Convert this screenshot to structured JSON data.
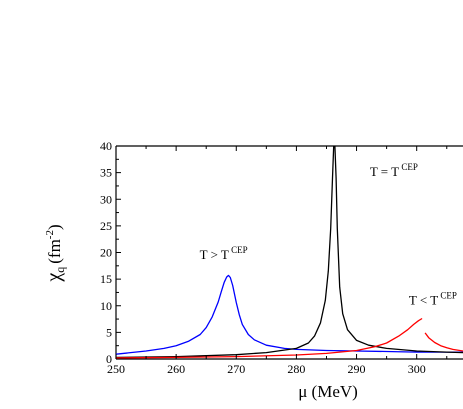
{
  "chart_data": {
    "type": "line",
    "title": "",
    "xlabel": "μ (MeV)",
    "ylabel_main": "χ",
    "ylabel_sub": "q",
    "ylabel_unit": "(fm",
    "ylabel_exp": "-2",
    "ylabel_close": ")",
    "xlim": [
      250,
      307.7
    ],
    "ylim": [
      0,
      40
    ],
    "xticks": [
      250,
      260,
      270,
      280,
      290,
      300
    ],
    "yticks": [
      0,
      5,
      10,
      15,
      20,
      25,
      30,
      35,
      40
    ],
    "grid": false,
    "series": [
      {
        "color": "#0000ff",
        "x": [
          250,
          255,
          258,
          260,
          262,
          264,
          265,
          266,
          267,
          267.5,
          268,
          268.4,
          268.7,
          269,
          269.4,
          270,
          270.5,
          271,
          272,
          273,
          275,
          278,
          280,
          285,
          290,
          295,
          300,
          305,
          307.7
        ],
        "y": [
          0.9,
          1.5,
          2.0,
          2.5,
          3.3,
          4.6,
          5.9,
          7.9,
          10.7,
          12.6,
          14.4,
          15.4,
          15.7,
          15.3,
          13.8,
          10.6,
          8.3,
          6.5,
          4.6,
          3.6,
          2.6,
          2.0,
          1.8,
          1.6,
          1.5,
          1.4,
          1.3,
          1.3,
          1.3
        ]
      },
      {
        "color": "#000000",
        "x": [
          250,
          260,
          270,
          275,
          280,
          282,
          283,
          284,
          284.8,
          285.3,
          285.7,
          286,
          286.2,
          286.4,
          286.6,
          286.8,
          287.2,
          287.7,
          288.5,
          290,
          292,
          295,
          300,
          305,
          307.7
        ],
        "y": [
          0.3,
          0.45,
          0.8,
          1.2,
          2.0,
          3.0,
          4.3,
          6.8,
          11.0,
          16.5,
          24.5,
          34.0,
          40,
          40,
          34.0,
          24.5,
          13.5,
          8.5,
          5.5,
          3.5,
          2.6,
          2.0,
          1.5,
          1.3,
          1.2
        ]
      },
      {
        "color": "#ff0000",
        "x": [
          250,
          260,
          270,
          280,
          285,
          290,
          293,
          295,
          297,
          298.5,
          299.5,
          300.3,
          300.9
        ],
        "y": [
          0.2,
          0.3,
          0.45,
          0.75,
          1.05,
          1.6,
          2.3,
          3.0,
          4.3,
          5.5,
          6.5,
          7.2,
          7.6
        ]
      },
      {
        "color": "#ff0000",
        "x": [
          301.4,
          302,
          303,
          304,
          305,
          306,
          307.7
        ],
        "y": [
          4.9,
          4.0,
          3.1,
          2.5,
          2.1,
          1.8,
          1.5
        ]
      }
    ],
    "annotations": [
      {
        "text": "T = T",
        "sup": "CEP",
        "x": 296.2,
        "y": 34.4
      },
      {
        "text": "T > T",
        "sup": "CEP",
        "x": 267.9,
        "y": 18.8
      },
      {
        "text": "T < T",
        "sup": "CEP",
        "x": 302.7,
        "y": 10.2
      }
    ]
  }
}
